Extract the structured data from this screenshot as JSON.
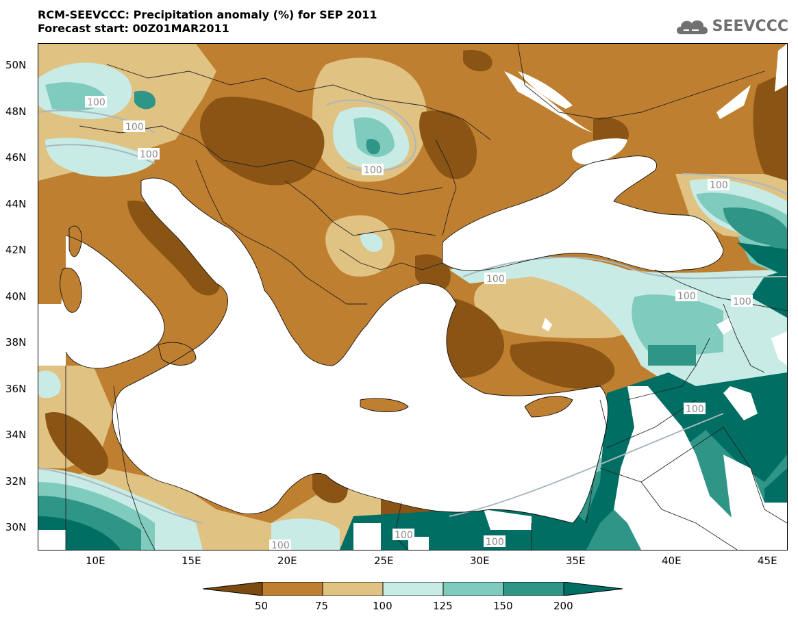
{
  "title": {
    "line1": "RCM-SEEVCCC: Precipitation anomaly (%) for SEP 2011",
    "line2": "Forecast start: 00Z01MAR2011"
  },
  "logo": {
    "text": "SEEVCCC",
    "icon": "cloud-logo-icon"
  },
  "map": {
    "lon_range": [
      7,
      46
    ],
    "lat_range": [
      29,
      51
    ],
    "lat_labels": [
      "50N",
      "48N",
      "46N",
      "44N",
      "42N",
      "40N",
      "38N",
      "36N",
      "34N",
      "32N",
      "30N"
    ],
    "lon_labels": [
      "10E",
      "15E",
      "20E",
      "25E",
      "30E",
      "35E",
      "40E",
      "45E"
    ],
    "contour_label": "100",
    "sea_color": "#ffffff"
  },
  "colorbar": {
    "labels": [
      "50",
      "75",
      "100",
      "125",
      "150",
      "200"
    ],
    "colors": [
      "#7a4a10",
      "#bf7f30",
      "#e0c283",
      "#c8ebe5",
      "#7fcbbd",
      "#2e9587",
      "#006e63"
    ],
    "unit": "%"
  }
}
